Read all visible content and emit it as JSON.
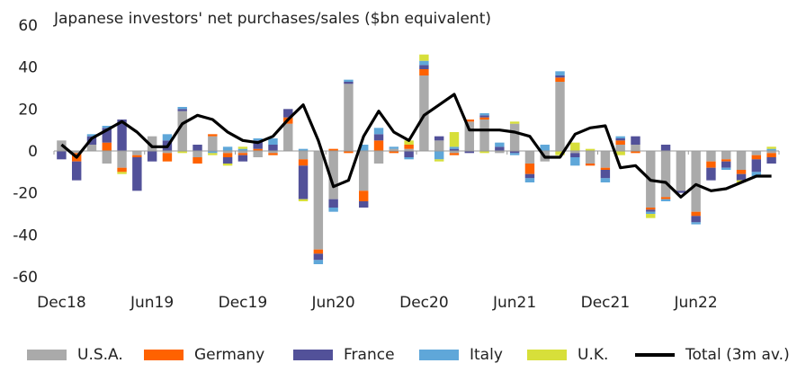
{
  "chart_data": {
    "type": "bar",
    "title": "Japanese investors' net purchases/sales ($bn equivalent)",
    "ylim": [
      -60,
      60
    ],
    "yticks": [
      -60,
      -40,
      -20,
      0,
      20,
      40,
      60
    ],
    "ytick_labels": [
      "-60",
      "-40",
      "-20",
      "0",
      "20",
      "40",
      "60"
    ],
    "xtick_labels": [
      "Dec18",
      "Jun19",
      "Dec19",
      "Jun20",
      "Dec20",
      "Jun21",
      "Dec21",
      "Jun22"
    ],
    "xtick_index": [
      0,
      6,
      12,
      18,
      24,
      30,
      36,
      42
    ],
    "grid": false,
    "legend_position": "bottom",
    "categories": [
      "Dec18",
      "Jan19",
      "Feb19",
      "Mar19",
      "Apr19",
      "May19",
      "Jun19",
      "Jul19",
      "Aug19",
      "Sep19",
      "Oct19",
      "Nov19",
      "Dec19",
      "Jan20",
      "Feb20",
      "Mar20",
      "Apr20",
      "May20",
      "Jun20",
      "Jul20",
      "Aug20",
      "Sep20",
      "Oct20",
      "Nov20",
      "Dec20",
      "Jan21",
      "Feb21",
      "Mar21",
      "Apr21",
      "May21",
      "Jun21",
      "Jul21",
      "Aug21",
      "Sep21",
      "Oct21",
      "Nov21",
      "Dec21",
      "Jan22",
      "Feb22",
      "Mar22",
      "Apr22",
      "May22",
      "Jun22",
      "Jul22",
      "Aug22",
      "Sep22",
      "Oct22",
      "Nov22"
    ],
    "series": [
      {
        "name": "U.S.A.",
        "color": "#aaaaaa",
        "values": [
          5,
          -1,
          3,
          -6,
          -8,
          -2,
          7,
          -1,
          19,
          -3,
          7,
          -1,
          -1,
          -3,
          -1,
          13,
          -4,
          -47,
          -23,
          32,
          -19,
          -6,
          1,
          1,
          36,
          5,
          -1,
          14,
          15,
          -1,
          13,
          -6,
          -5,
          33,
          -1,
          -6,
          -8,
          3,
          3,
          -27,
          -22,
          -19,
          -29,
          -5,
          -4,
          -9,
          -2,
          -1
        ],
        "colors": []
      },
      {
        "name": "Germany",
        "color": "#ff6200",
        "values": [
          0,
          -4,
          0,
          4,
          -2,
          -1,
          0,
          -4,
          0,
          -3,
          1,
          -2,
          -1,
          1,
          -1,
          3,
          -3,
          -2,
          1,
          -1,
          -5,
          5,
          -1,
          2,
          3,
          0,
          -1,
          1,
          1,
          0,
          0,
          -5,
          0,
          2,
          0,
          -1,
          -1,
          2,
          -1,
          -1,
          -1,
          0,
          -2,
          -3,
          -1,
          -2,
          -2,
          -2
        ]
      },
      {
        "name": "France",
        "color": "#525199",
        "values": [
          -4,
          -9,
          4,
          7,
          15,
          -16,
          -5,
          5,
          1,
          3,
          0,
          -3,
          -3,
          4,
          3,
          4,
          -16,
          -3,
          -4,
          1,
          -3,
          3,
          0,
          -3,
          2,
          2,
          1,
          -1,
          1,
          2,
          -1,
          -2,
          0,
          1,
          -2,
          0,
          -4,
          1,
          4,
          -1,
          3,
          -1,
          -3,
          -6,
          -3,
          -3,
          -6,
          -3
        ]
      },
      {
        "name": "Italy",
        "color": "#5fa7d9",
        "values": [
          0,
          0,
          1,
          1,
          0,
          0,
          0,
          3,
          1,
          0,
          -1,
          2,
          1,
          1,
          3,
          0,
          1,
          -2,
          -2,
          1,
          3,
          3,
          1,
          -1,
          2,
          -4,
          1,
          0,
          1,
          2,
          -1,
          -2,
          3,
          2,
          -4,
          0,
          -2,
          1,
          0,
          -1,
          -1,
          0,
          -1,
          0,
          -1,
          0,
          -2,
          1
        ]
      },
      {
        "name": "U.K.",
        "color": "#d7df3a",
        "values": [
          0,
          0,
          0,
          0,
          -1,
          0,
          0,
          0,
          -1,
          0,
          -1,
          -1,
          1,
          0,
          0,
          0,
          -1,
          0,
          0,
          0,
          0,
          0,
          0,
          2,
          3,
          -1,
          7,
          0,
          -1,
          0,
          1,
          0,
          0,
          -2,
          4,
          1,
          0,
          -2,
          0,
          -2,
          0,
          0,
          0,
          0,
          0,
          -1,
          0,
          1
        ]
      },
      {
        "name": "Total (3m av.)",
        "color": "#000000",
        "type": "line",
        "values": [
          3,
          -3,
          6,
          10,
          14,
          9,
          2,
          2,
          13,
          17,
          15,
          9,
          5,
          4,
          7,
          15,
          22,
          5,
          -17,
          -14,
          7,
          19,
          9,
          5,
          17,
          22,
          27,
          10,
          10,
          10,
          9,
          7,
          -3,
          -3,
          8,
          11,
          12,
          -8,
          -7,
          -14,
          -15,
          -22,
          -16,
          -19,
          -18,
          -15,
          -12,
          -12
        ]
      }
    ]
  }
}
